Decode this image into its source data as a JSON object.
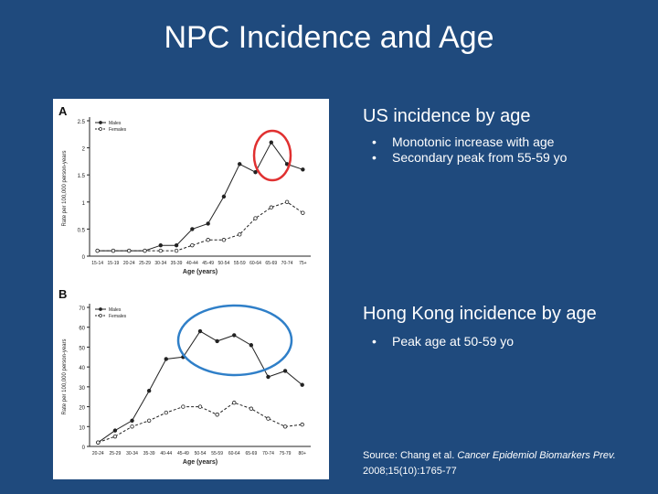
{
  "slide": {
    "title": "NPC Incidence and Age"
  },
  "us_section": {
    "heading": "US incidence by age",
    "bullets": [
      "Monotonic increase with age",
      "Secondary peak from 55-59 yo"
    ]
  },
  "hk_section": {
    "heading": "Hong Kong incidence by age",
    "bullets": [
      "Peak age at 50-59 yo"
    ]
  },
  "source": {
    "prefix": "Source: Chang et al.",
    "journal": "Cancer Epidemiol Biomarkers Prev.",
    "citation": "2008;15(10):1765-77"
  },
  "colors": {
    "background": "#1f4a7d",
    "highlight_us": "#e03030",
    "highlight_hk": "#2f7fc8"
  },
  "chart_data": [
    {
      "type": "line",
      "panel_label": "A",
      "ylabel": "Rate per 100,000 person-years",
      "xlabel": "Age (years)",
      "ylim": [
        0,
        2.5
      ],
      "yticks": [
        "0",
        "0.5",
        "1",
        "1.5",
        "2",
        "2.5"
      ],
      "categories": [
        "15-14",
        "15-19",
        "20-24",
        "25-29",
        "30-34",
        "35-39",
        "40-44",
        "45-49",
        "50-54",
        "55-59",
        "60-64",
        "65-69",
        "70-74",
        "75+"
      ],
      "series": [
        {
          "name": "Males",
          "values": [
            0.1,
            0.1,
            0.1,
            0.1,
            0.2,
            0.2,
            0.5,
            0.6,
            1.1,
            1.7,
            1.55,
            2.1,
            1.7,
            1.6
          ],
          "dashed": false,
          "marker": "filled"
        },
        {
          "name": "Females",
          "values": [
            0.1,
            0.1,
            0.1,
            0.1,
            0.1,
            0.1,
            0.2,
            0.3,
            0.3,
            0.4,
            0.7,
            0.9,
            1.0,
            0.8
          ],
          "dashed": true,
          "marker": "open"
        }
      ],
      "legend": "top-left",
      "highlight": "red circle around 65-69 male peak"
    },
    {
      "type": "line",
      "panel_label": "B",
      "ylabel": "Rate per 100,000 person-years",
      "xlabel": "Age (years)",
      "ylim": [
        0,
        70
      ],
      "yticks": [
        "0",
        "10",
        "20",
        "30",
        "40",
        "50",
        "60",
        "70"
      ],
      "categories": [
        "20-24",
        "25-29",
        "30-34",
        "35-39",
        "40-44",
        "45-49",
        "50-54",
        "55-59",
        "60-64",
        "65-69",
        "70-74",
        "75-79",
        "80+"
      ],
      "series": [
        {
          "name": "Males",
          "values": [
            2,
            8,
            13,
            28,
            44,
            45,
            58,
            53,
            56,
            51,
            35,
            38,
            31
          ],
          "dashed": false,
          "marker": "filled"
        },
        {
          "name": "Females",
          "values": [
            2,
            5,
            10,
            13,
            17,
            20,
            20,
            16,
            22,
            19,
            14,
            10,
            11
          ],
          "dashed": true,
          "marker": "open"
        }
      ],
      "legend": "top-left",
      "highlight": "blue circle around 50-64 male peak"
    }
  ]
}
